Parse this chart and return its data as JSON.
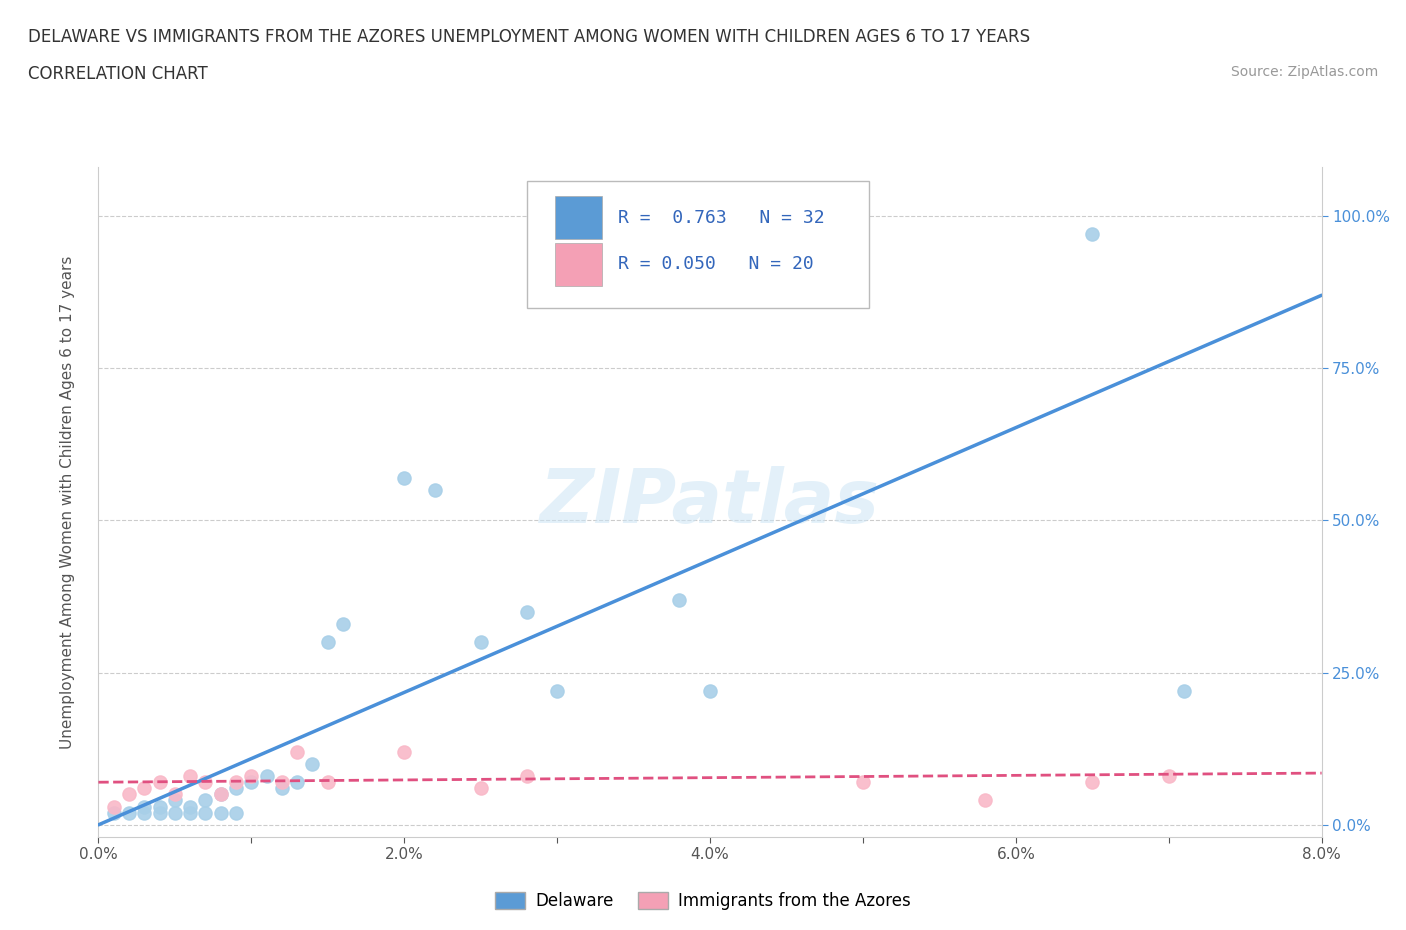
{
  "title_line1": "DELAWARE VS IMMIGRANTS FROM THE AZORES UNEMPLOYMENT AMONG WOMEN WITH CHILDREN AGES 6 TO 17 YEARS",
  "title_line2": "CORRELATION CHART",
  "source": "Source: ZipAtlas.com",
  "ylabel": "Unemployment Among Women with Children Ages 6 to 17 years",
  "xlim": [
    0.0,
    0.08
  ],
  "ylim": [
    -0.02,
    1.08
  ],
  "xticks": [
    0.0,
    0.01,
    0.02,
    0.03,
    0.04,
    0.05,
    0.06,
    0.07,
    0.08
  ],
  "xtick_labels": [
    "0.0%",
    "",
    "2.0%",
    "",
    "4.0%",
    "",
    "6.0%",
    "",
    "8.0%"
  ],
  "ytick_labels": [
    "0.0%",
    "25.0%",
    "50.0%",
    "75.0%",
    "100.0%"
  ],
  "ytick_positions": [
    0.0,
    0.25,
    0.5,
    0.75,
    1.0
  ],
  "watermark": "ZIPatlas",
  "legend_R1": "0.763",
  "legend_N1": "32",
  "legend_R2": "0.050",
  "legend_N2": "20",
  "blue_color": "#a8cfe8",
  "pink_color": "#f9b8c8",
  "blue_line": "#4a90d9",
  "pink_line": "#e05080",
  "blue_legend": "#5b9bd5",
  "pink_legend": "#f4a0b5",
  "delaware_scatter_x": [
    0.001,
    0.002,
    0.003,
    0.003,
    0.004,
    0.004,
    0.005,
    0.005,
    0.006,
    0.006,
    0.007,
    0.007,
    0.008,
    0.008,
    0.009,
    0.009,
    0.01,
    0.011,
    0.012,
    0.013,
    0.014,
    0.015,
    0.016,
    0.02,
    0.022,
    0.025,
    0.028,
    0.03,
    0.038,
    0.04,
    0.065,
    0.071
  ],
  "delaware_scatter_y": [
    0.02,
    0.02,
    0.03,
    0.02,
    0.03,
    0.02,
    0.04,
    0.02,
    0.03,
    0.02,
    0.04,
    0.02,
    0.05,
    0.02,
    0.06,
    0.02,
    0.07,
    0.08,
    0.06,
    0.07,
    0.1,
    0.3,
    0.33,
    0.57,
    0.55,
    0.3,
    0.35,
    0.22,
    0.37,
    0.22,
    0.97,
    0.22
  ],
  "azores_scatter_x": [
    0.001,
    0.002,
    0.003,
    0.004,
    0.005,
    0.006,
    0.007,
    0.008,
    0.009,
    0.01,
    0.012,
    0.013,
    0.015,
    0.02,
    0.025,
    0.028,
    0.05,
    0.058,
    0.065,
    0.07
  ],
  "azores_scatter_y": [
    0.03,
    0.05,
    0.06,
    0.07,
    0.05,
    0.08,
    0.07,
    0.05,
    0.07,
    0.08,
    0.07,
    0.12,
    0.07,
    0.12,
    0.06,
    0.08,
    0.07,
    0.04,
    0.07,
    0.08
  ],
  "delaware_line_x": [
    0.0,
    0.08
  ],
  "delaware_line_y": [
    0.0,
    0.87
  ],
  "azores_line_x": [
    0.0,
    0.08
  ],
  "azores_line_y": [
    0.07,
    0.085
  ]
}
